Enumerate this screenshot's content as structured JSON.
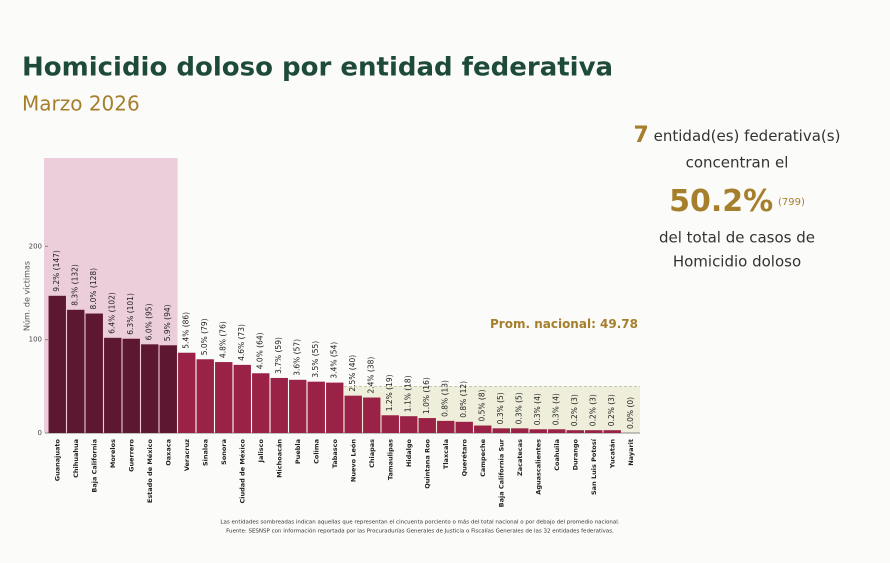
{
  "chart_data": {
    "type": "bar",
    "title": "Homicidio doloso por entidad federativa",
    "subtitle": "Marzo 2026",
    "y_label": "Núm. de víctimas",
    "categories": [
      "Guanajuato",
      "Chihuahua",
      "Baja California",
      "Morelos",
      "Guerrero",
      "Estado de México",
      "Oaxaca",
      "Veracruz",
      "Sinaloa",
      "Sonora",
      "Ciudad de México",
      "Jalisco",
      "Michoacán",
      "Puebla",
      "Colima",
      "Tabasco",
      "Nuevo León",
      "Chiapas",
      "Tamaulipas",
      "Hidalgo",
      "Quintana Roo",
      "Tlaxcala",
      "Querétaro",
      "Campeche",
      "Baja California Sur",
      "Zacatecas",
      "Aguascalientes",
      "Coahuila",
      "Durango",
      "San Luis Potosí",
      "Yucatán",
      "Nayarit"
    ],
    "values": [
      147,
      132,
      128,
      102,
      101,
      95,
      94,
      86,
      79,
      76,
      73,
      64,
      59,
      57,
      55,
      54,
      40,
      38,
      19,
      18,
      16,
      13,
      12,
      8,
      5,
      5,
      4,
      4,
      3,
      3,
      3,
      0
    ],
    "value_labels": [
      "9.2% (147)",
      "8.3% (132)",
      "8.0% (128)",
      "6.4% (102)",
      "6.3% (101)",
      "6.0% (95)",
      "5.9% (94)",
      "5.4% (86)",
      "5.0% (79)",
      "4.8% (76)",
      "4.6% (73)",
      "4.0% (64)",
      "3.7% (59)",
      "3.6% (57)",
      "3.5% (55)",
      "3.4% (54)",
      "2.5% (40)",
      "2.4% (38)",
      "1.2% (19)",
      "1.1% (18)",
      "1.0% (16)",
      "0.8% (13)",
      "0.8% (12)",
      "0.5% (8)",
      "0.3% (5)",
      "0.3% (5)",
      "0.3% (4)",
      "0.3% (4)",
      "0.2% (3)",
      "0.2% (3)",
      "0.2% (3)",
      "0.0% (0)"
    ],
    "color": "#9b2247",
    "highlight_color": "#5e1730",
    "ylim": [
      0,
      300
    ],
    "yticks": [
      0,
      100,
      200
    ],
    "average": {
      "value": 49.78,
      "label": "Prom. nacional: 49.78"
    },
    "summary": {
      "count": 7,
      "line1": "entidad(es) federativa(s)",
      "line2": "concentran el",
      "share": {
        "value": 50.2,
        "label": "50.2%"
      },
      "total": {
        "value": 799,
        "label": "(799)"
      },
      "line3": "del total de casos de",
      "line4": "Homicidio doloso"
    },
    "notes": [
      "Las entidades sombreadas indican aquellas que representan el cincuenta porciento o más del total nacional o por debajo del promedio nacional.",
      "Fuente: SESNSP con información reportada por las Procuradurías Generales de Justicia o Fiscalías Generales de las 32 entidades federativas."
    ]
  }
}
